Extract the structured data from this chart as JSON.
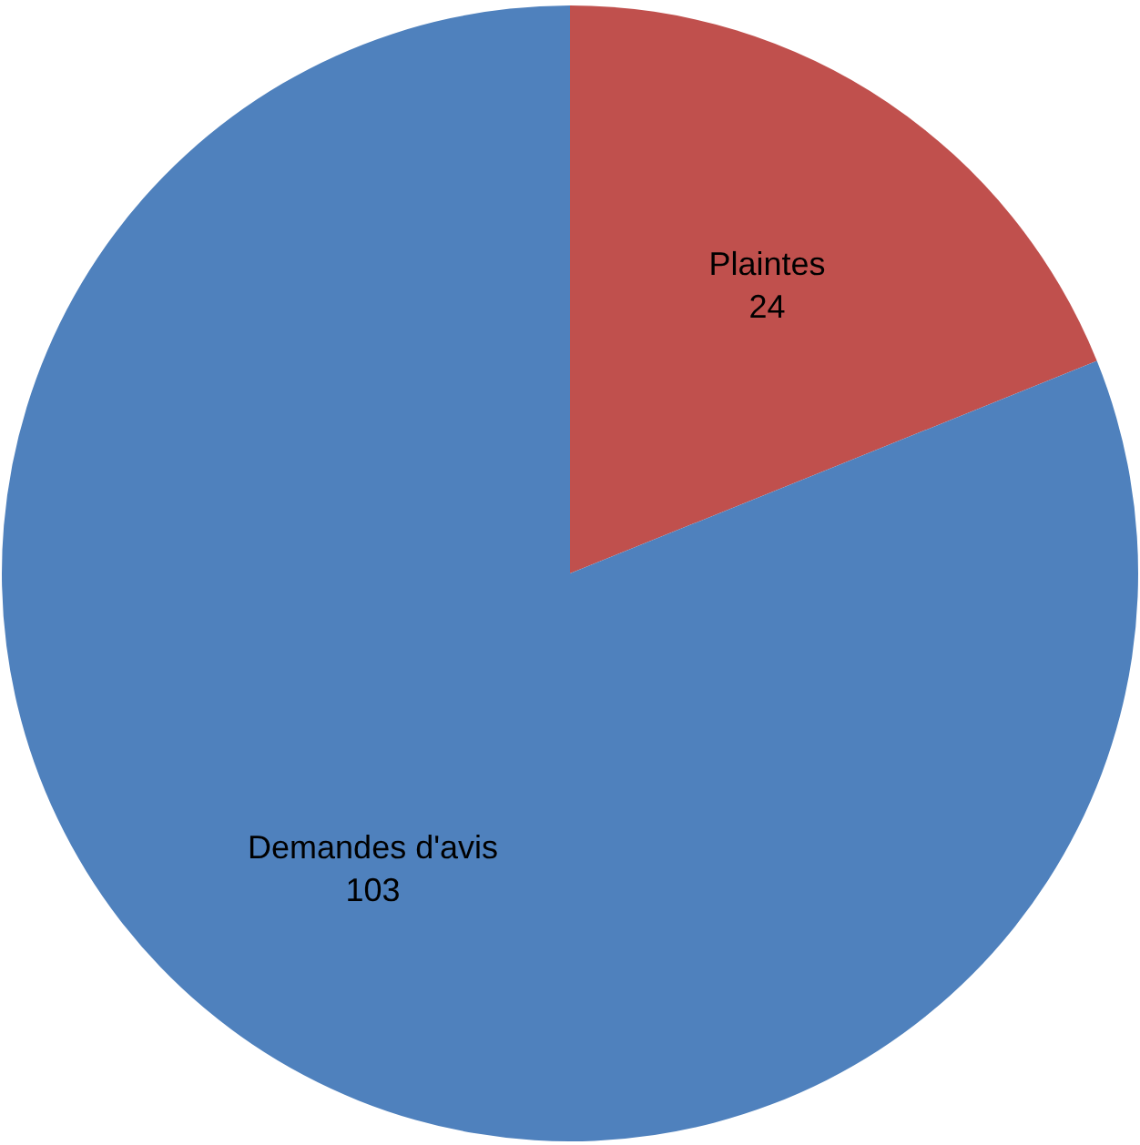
{
  "chart_data": {
    "type": "pie",
    "categories": [
      "Plaintes",
      "Demandes d'avis"
    ],
    "values": [
      24,
      103
    ],
    "colors": [
      "#c0504d",
      "#4f81bd"
    ],
    "data_labels": true
  }
}
